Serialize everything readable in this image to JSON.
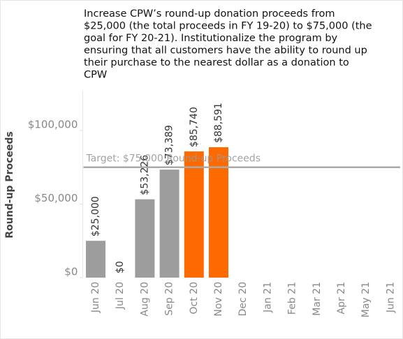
{
  "chart_data": {
    "type": "bar",
    "title_lines": [
      "Increase CPW’s round-up donation proceeds from",
      "$25,000 (the total proceeds in FY 19-20) to $75,000 (the",
      "goal for FY 20-21). Institutionalize the program by",
      "ensuring that all customers have the ability to round up",
      "their purchase to the nearest dollar as a donation to",
      "CPW"
    ],
    "y_label": "Round-up Proceeds",
    "categories": [
      "Jun 20",
      "Jul 20",
      "Aug 20",
      "Sep 20",
      "Oct 20",
      "Nov 20",
      "Dec 20",
      "Jan 21",
      "Feb 21",
      "Mar 21",
      "Apr 21",
      "May 21",
      "Jun 21"
    ],
    "values": [
      25000,
      0,
      53226,
      73389,
      85740,
      88591,
      null,
      null,
      null,
      null,
      null,
      null,
      null
    ],
    "value_labels": [
      "$25,000",
      "$0",
      "$53,226",
      "$73,389",
      "$85,740",
      "$88,591",
      null,
      null,
      null,
      null,
      null,
      null,
      null
    ],
    "colors": [
      "#9d9d9d",
      "#9d9d9d",
      "#9d9d9d",
      "#9d9d9d",
      "#ff6a00",
      "#ff6a00",
      "#ff6a00",
      "#ff6a00",
      "#ff6a00",
      "#ff6a00",
      "#ff6a00",
      "#ff6a00",
      "#ff6a00"
    ],
    "ylim": [
      0,
      127000
    ],
    "yticks": [
      {
        "value": 0,
        "label": "$0"
      },
      {
        "value": 50000,
        "label": "$50,000"
      },
      {
        "value": 100000,
        "label": "$100,000"
      }
    ],
    "reference_line": {
      "value": 75000,
      "label": "Target: $75,000 Round-up Proceeds",
      "color": "#aaaaaa"
    }
  }
}
